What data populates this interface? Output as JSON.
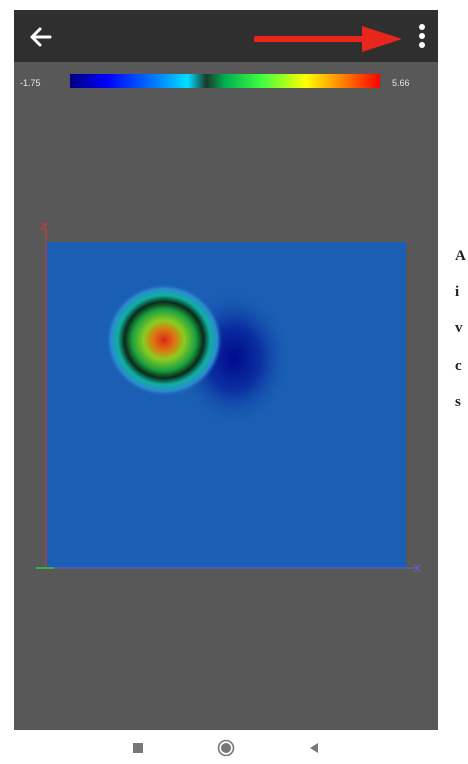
{
  "colors": {
    "appbar": "#2f2f2f",
    "viewport_bg": "#585858",
    "plot_base": "#1a5fb4",
    "annotation_arrow": "#e8261c",
    "axis_x": "#6a5acd",
    "axis_y": "#d23a3a",
    "axis_z": "#3cb043"
  },
  "appbar": {
    "back_icon": "arrow-left-icon",
    "menu_icon": "more-vertical-icon"
  },
  "colorbar": {
    "min_label": "-1.75",
    "max_label": "5.66",
    "colormap": "jet"
  },
  "plot": {
    "axis_x_label": "x",
    "axis_y_label": "z",
    "peak_color": "#d62a1a",
    "trough_color": "#000a8c"
  },
  "side_text": {
    "lines": [
      "A",
      "i",
      "v",
      "c",
      "s"
    ]
  },
  "navbar": {
    "recents_icon": "square-icon",
    "home_icon": "circle-icon",
    "back_icon": "triangle-left-icon"
  }
}
